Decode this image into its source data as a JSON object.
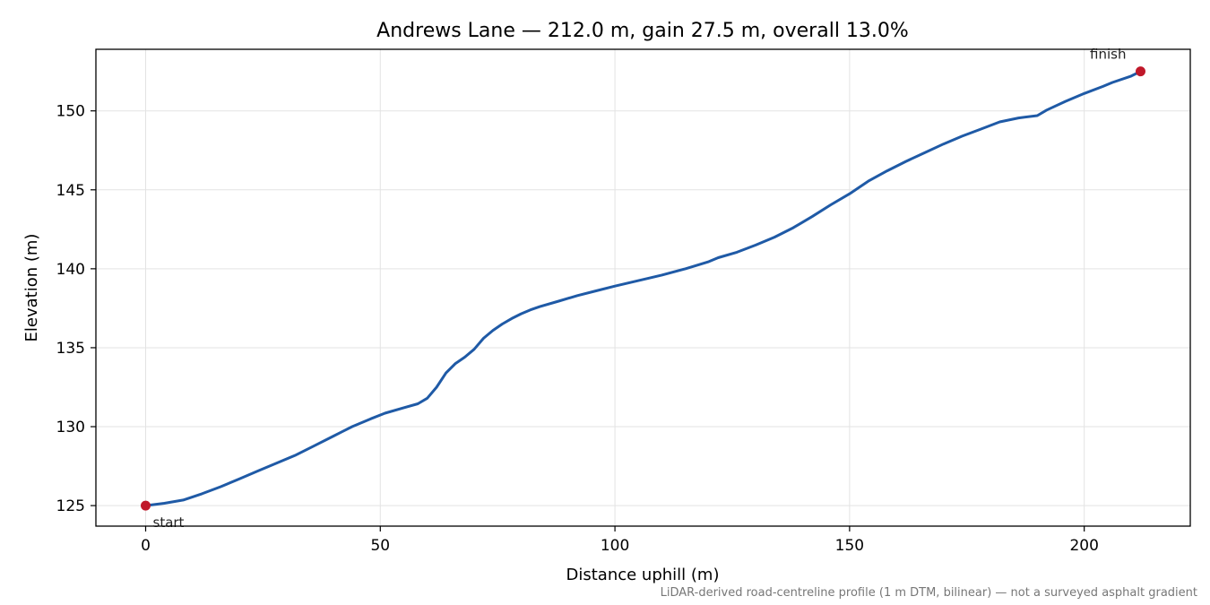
{
  "chart_data": {
    "type": "line",
    "title": "Andrews Lane — 212.0 m, gain 27.5 m, overall 13.0%",
    "xlabel": "Distance uphill (m)",
    "ylabel": "Elevation (m)",
    "xlim": [
      -10.6,
      222.6
    ],
    "ylim": [
      123.7,
      153.9
    ],
    "xticks": [
      0,
      50,
      100,
      150,
      200
    ],
    "yticks": [
      125,
      130,
      135,
      140,
      145,
      150
    ],
    "grid": true,
    "line_color": "#1f5aa6",
    "marker_color": "#c0182a",
    "series": [
      {
        "x": [
          0,
          4,
          8,
          12,
          16,
          20,
          24,
          28,
          32,
          36,
          40,
          44,
          48,
          51,
          55,
          58,
          60,
          62,
          64,
          66,
          68,
          70,
          72,
          74,
          76,
          78,
          80,
          82,
          84,
          88,
          92,
          96,
          100,
          105,
          110,
          115,
          120,
          122,
          126,
          130,
          134,
          138,
          142,
          146,
          150,
          154,
          158,
          162,
          166,
          170,
          174,
          178,
          182,
          186,
          190,
          192,
          196,
          200,
          204,
          206,
          210,
          212
        ],
        "y": [
          125.0,
          125.15,
          125.35,
          125.75,
          126.2,
          126.7,
          127.2,
          127.7,
          128.2,
          128.8,
          129.4,
          130.0,
          130.5,
          130.85,
          131.2,
          131.45,
          131.8,
          132.5,
          133.4,
          134.0,
          134.4,
          134.9,
          135.6,
          136.1,
          136.5,
          136.85,
          137.15,
          137.4,
          137.6,
          137.95,
          138.3,
          138.6,
          138.9,
          139.25,
          139.6,
          140.0,
          140.45,
          140.7,
          141.05,
          141.5,
          142.0,
          142.6,
          143.3,
          144.05,
          144.75,
          145.55,
          146.2,
          146.8,
          147.35,
          147.9,
          148.4,
          148.85,
          149.3,
          149.55,
          149.7,
          150.05,
          150.6,
          151.1,
          151.55,
          151.8,
          152.2,
          152.5
        ]
      }
    ],
    "points": [
      {
        "label": "start",
        "x": 0,
        "y": 125.0
      },
      {
        "label": "finish",
        "x": 212,
        "y": 152.5
      }
    ],
    "footnote": "LiDAR-derived road-centreline profile (1 m DTM, bilinear) — not a surveyed asphalt gradient"
  }
}
